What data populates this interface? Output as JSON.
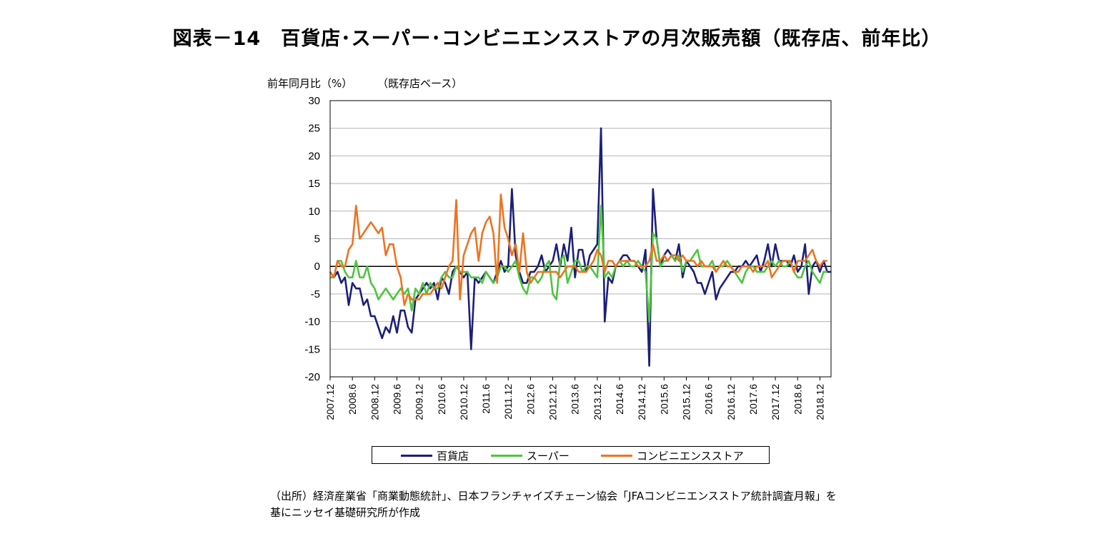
{
  "title": "図表－14　百貨店･スーパー･コンビニエンスストアの月次販売額（既存店、前年比）",
  "source_lines": [
    "（出所）経済産業省「商業動態統計」、日本フランチャイズチェーン協会「JFAコンビニエンスストア統計調査月報」を",
    "基にニッセイ基礎研究所が作成"
  ],
  "legend": {
    "dept": "百貨店",
    "super": "スーパー",
    "cvs": "コンビニエンスストア"
  },
  "chart_data": {
    "type": "line",
    "ylabel": "前年同月比（%）",
    "sublabel": "（既存店ベース）",
    "ylim": [
      -20,
      30
    ],
    "yticks": [
      30,
      25,
      20,
      15,
      10,
      5,
      0,
      -5,
      -10,
      -15,
      -20
    ],
    "grid": true,
    "x_start": "2007.12",
    "x_end": "2018.12",
    "xtick_labels": [
      "2007.12",
      "2008.6",
      "2008.12",
      "2009.6",
      "2009.12",
      "2010.6",
      "2010.12",
      "2011.6",
      "2011.12",
      "2012.6",
      "2012.12",
      "2013.6",
      "2013.12",
      "2014.6",
      "2014.12",
      "2015.6",
      "2015.12",
      "2016.6",
      "2016.12",
      "2017.6",
      "2017.12",
      "2018.6",
      "2018.12"
    ],
    "colors": {
      "dept": "#1c1f7a",
      "super": "#4fc43f",
      "cvs": "#ee7320"
    },
    "series": [
      {
        "key": "dept",
        "name": "百貨店",
        "values": [
          -1,
          -2,
          -1,
          -3,
          -2,
          -7,
          -3,
          -4,
          -4,
          -7,
          -6,
          -9,
          -9,
          -11,
          -13,
          -11,
          -12,
          -9,
          -12,
          -8,
          -8,
          -11,
          -12,
          -6,
          -5,
          -4,
          -3,
          -4,
          -3,
          -6,
          -2,
          -3,
          -5,
          -1,
          0,
          -1,
          -2,
          -1,
          -15,
          -2,
          -3,
          -2,
          -1,
          -2,
          -3,
          -1,
          1,
          -1,
          0,
          14,
          2,
          -1,
          -3,
          -3,
          -1,
          -1,
          0,
          2,
          -1,
          0,
          1,
          4,
          0,
          4,
          1,
          7,
          -2,
          3,
          3,
          -1,
          2,
          3,
          4,
          25,
          -10,
          -2,
          -3,
          0,
          1,
          2,
          2,
          1,
          1,
          0,
          -1,
          3,
          -18,
          14,
          5,
          0,
          2,
          3,
          2,
          1,
          4,
          -2,
          1,
          0,
          -1,
          -3,
          -3,
          -5,
          -3,
          -1,
          -6,
          -4,
          -3,
          -2,
          -1,
          -1,
          0,
          0,
          1,
          0,
          1,
          2,
          -1,
          1,
          4,
          0,
          4,
          1,
          1,
          1,
          0,
          2,
          -1,
          0,
          4,
          -5,
          0,
          1,
          -1,
          1,
          -1,
          -1
        ]
      },
      {
        "key": "super",
        "name": "スーパー",
        "values": [
          -2,
          -2,
          1,
          1,
          -1,
          -2,
          -2,
          1,
          -2,
          -2,
          0,
          -3,
          -4,
          -6,
          -5,
          -4,
          -5,
          -6,
          -5,
          -4,
          -5,
          -4,
          -8,
          -4,
          -5,
          -3,
          -5,
          -3,
          -4,
          -4,
          -2,
          -1,
          -2,
          -2,
          0,
          -1,
          -1,
          -1,
          -2,
          -2,
          -2,
          -3,
          -1,
          -2,
          -3,
          -2,
          0,
          0,
          -1,
          0,
          1,
          -2,
          -4,
          -5,
          -2,
          -2,
          -3,
          -2,
          0,
          1,
          -5,
          -6,
          1,
          2,
          -3,
          -1,
          1,
          1,
          -1,
          0,
          0,
          -1,
          -2,
          11,
          -2,
          -1,
          -2,
          0,
          1,
          0,
          1,
          0,
          0,
          1,
          0,
          -1,
          -10,
          6,
          5,
          0,
          1,
          1,
          2,
          1,
          2,
          -1,
          1,
          1,
          2,
          3,
          0,
          0,
          0,
          1,
          -1,
          0,
          0,
          1,
          0,
          -1,
          -2,
          -3,
          -1,
          0,
          0,
          -1,
          -1,
          -1,
          0,
          1,
          0,
          1,
          0,
          0,
          1,
          -1,
          -2,
          -2,
          0,
          1,
          -1,
          -2,
          -3,
          -1,
          -1
        ]
      },
      {
        "key": "cvs",
        "name": "コンビニエンスストア",
        "values": [
          -1,
          -2,
          1,
          0,
          0,
          3,
          4,
          11,
          5,
          6,
          7,
          8,
          7,
          6,
          7,
          2,
          4,
          4,
          0,
          -2,
          -7,
          -5,
          -6,
          -6,
          -6,
          -5,
          -5,
          -5,
          -4,
          -3,
          -4,
          -2,
          0,
          1,
          12,
          -6,
          2,
          4,
          6,
          7,
          1,
          6,
          8,
          9,
          6,
          -3,
          13,
          7,
          5,
          2,
          4,
          -1,
          6,
          -1,
          -3,
          -2,
          -1,
          -1,
          -1,
          -1,
          -1,
          -1,
          -2,
          -1,
          0,
          0,
          0,
          -1,
          -1,
          -1,
          0,
          1,
          3,
          2,
          -1,
          1,
          1,
          0,
          1,
          1,
          1,
          1,
          1,
          0,
          0,
          0,
          1,
          4,
          1,
          1,
          2,
          1,
          2,
          2,
          1,
          2,
          1,
          1,
          1,
          0,
          1,
          0,
          0,
          0,
          -1,
          0,
          1,
          0,
          0,
          -1,
          -1,
          0,
          0,
          0,
          -1,
          0,
          0,
          0,
          1,
          -2,
          -1,
          0,
          1,
          1,
          1,
          -1,
          1,
          1,
          1,
          2,
          3,
          1,
          0,
          1,
          1
        ]
      }
    ]
  }
}
